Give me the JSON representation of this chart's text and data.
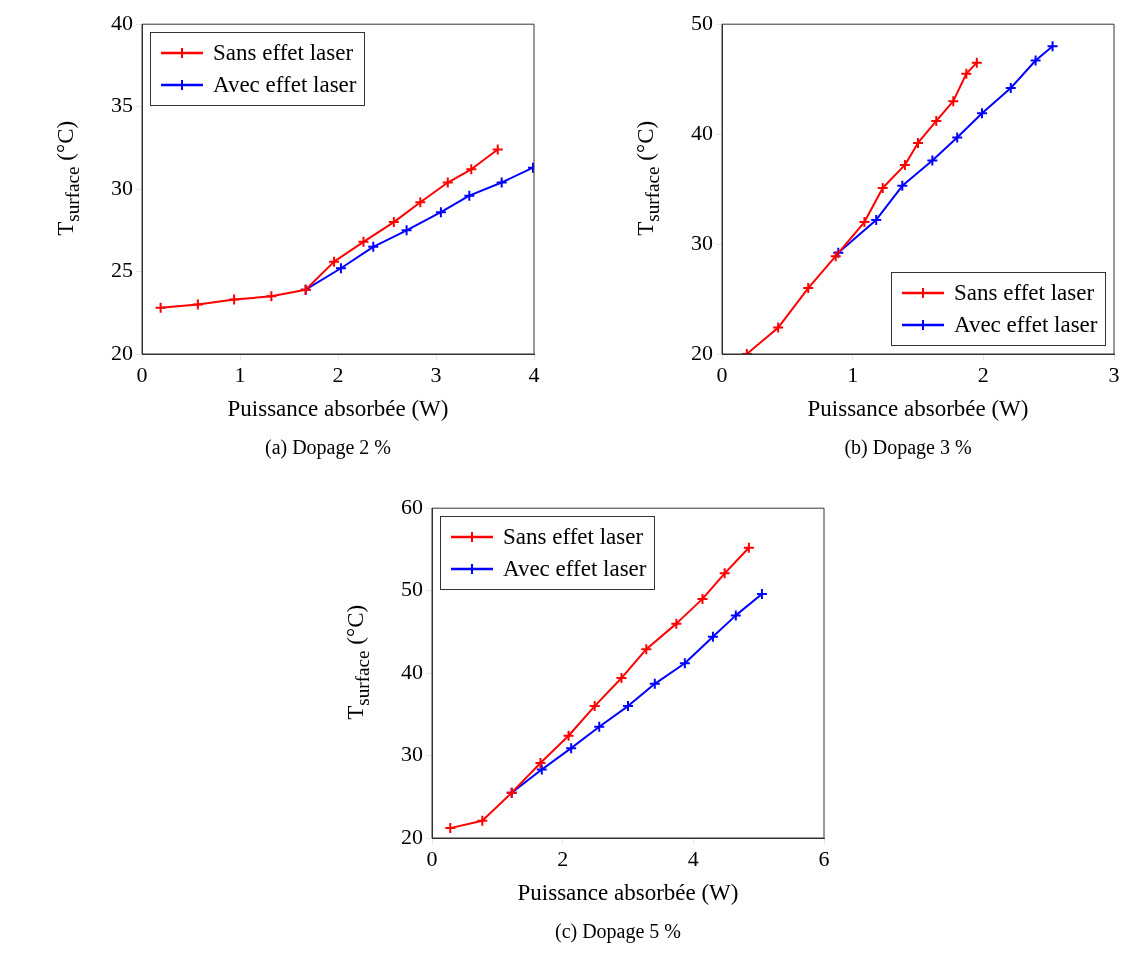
{
  "chart_data": [
    {
      "type": "line",
      "title": "(a) Dopage 2 %",
      "xlabel": "Puissance absorbée (W)",
      "ylabel": "T$_{surface}$ (°C)",
      "xlim": [
        0,
        4
      ],
      "xticks": [
        0,
        1,
        2,
        3,
        4
      ],
      "ylim": [
        20,
        40
      ],
      "yticks": [
        20,
        25,
        30,
        35,
        40
      ],
      "legend": "top left",
      "marker": "cross",
      "line_style": "solid",
      "series": [
        {
          "name": "Sans effet laser",
          "color": "#ff0000",
          "x": [
            0.19,
            0.57,
            0.94,
            1.32,
            1.67,
            1.96,
            2.26,
            2.57,
            2.84,
            3.12,
            3.36,
            3.63
          ],
          "values": [
            22.8,
            23.0,
            23.3,
            23.5,
            23.9,
            25.6,
            26.8,
            28.0,
            29.2,
            30.4,
            31.2,
            32.4
          ]
        },
        {
          "name": "Avec effet laser",
          "color": "#0000ff",
          "x": [
            1.67,
            2.03,
            2.36,
            2.7,
            3.05,
            3.34,
            3.67,
            3.99
          ],
          "values": [
            23.9,
            25.2,
            26.5,
            27.5,
            28.6,
            29.6,
            30.4,
            31.3
          ]
        }
      ]
    },
    {
      "type": "line",
      "title": "(b) Dopage 3 %",
      "xlabel": "Puissance absorbée (W)",
      "ylabel": "T$_{surface}$ (°C)",
      "xlim": [
        0,
        3
      ],
      "xticks": [
        0,
        1,
        2,
        3
      ],
      "ylim": [
        20,
        50
      ],
      "yticks": [
        20,
        30,
        40,
        50
      ],
      "legend": "bottom right",
      "marker": "cross",
      "line_style": "solid",
      "series": [
        {
          "name": "Sans effet laser",
          "color": "#ff0000",
          "x": [
            0.19,
            0.43,
            0.66,
            0.87,
            1.09,
            1.23,
            1.4,
            1.5,
            1.64,
            1.77,
            1.87,
            1.95
          ],
          "values": [
            20.0,
            22.4,
            26.0,
            28.9,
            32.0,
            35.1,
            37.2,
            39.2,
            41.2,
            43.0,
            45.5,
            46.5
          ]
        },
        {
          "name": "Avec effet laser",
          "color": "#0000ff",
          "x": [
            0.89,
            1.18,
            1.38,
            1.61,
            1.8,
            1.99,
            2.21,
            2.4,
            2.53
          ],
          "values": [
            29.2,
            32.2,
            35.3,
            37.6,
            39.7,
            41.9,
            44.2,
            46.7,
            48.0
          ]
        }
      ]
    },
    {
      "type": "line",
      "title": "(c) Dopage 5 %",
      "xlabel": "Puissance absorbée (W)",
      "ylabel": "T$_{surface}$ (°C)",
      "xlim": [
        0,
        6
      ],
      "xticks": [
        0,
        2,
        4,
        6
      ],
      "ylim": [
        20,
        60
      ],
      "yticks": [
        20,
        30,
        40,
        50,
        60
      ],
      "legend": "top left",
      "marker": "cross",
      "line_style": "solid",
      "series": [
        {
          "name": "Sans effet laser",
          "color": "#ff0000",
          "x": [
            0.28,
            0.77,
            1.22,
            1.66,
            2.09,
            2.49,
            2.9,
            3.28,
            3.74,
            4.14,
            4.48,
            4.85
          ],
          "values": [
            21.2,
            22.1,
            25.5,
            29.1,
            32.4,
            36.0,
            39.4,
            42.9,
            46.0,
            49.0,
            52.1,
            55.2
          ]
        },
        {
          "name": "Avec effet laser",
          "color": "#0000ff",
          "x": [
            1.22,
            1.68,
            2.13,
            2.56,
            3.0,
            3.41,
            3.87,
            4.3,
            4.65,
            5.05
          ],
          "values": [
            25.5,
            28.3,
            30.9,
            33.5,
            36.0,
            38.7,
            41.2,
            44.4,
            47.0,
            49.6
          ]
        }
      ]
    }
  ]
}
